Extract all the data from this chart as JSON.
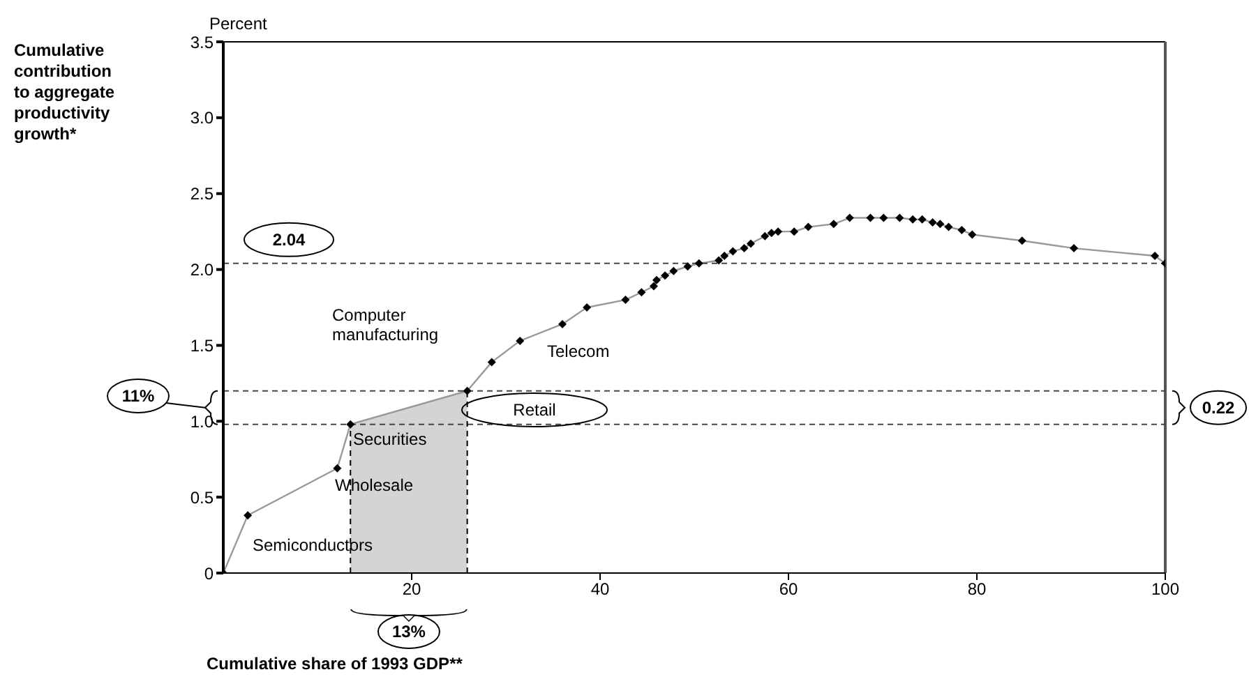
{
  "chart_data": {
    "type": "line",
    "xlabel": "Cumulative share of 1993 GDP**",
    "ylabel": "Cumulative contribution to aggregate productivity growth*",
    "xlim": [
      0,
      100
    ],
    "xticks": [
      20,
      40,
      60,
      80,
      100
    ],
    "ylim": [
      0,
      3.5
    ],
    "yticks": [
      0,
      {
        "value": 0.5,
        "label": "0.5"
      },
      {
        "value": 1,
        "label": "1.0"
      },
      {
        "value": 1.5,
        "label": "1.5"
      },
      {
        "value": 2,
        "label": "2.0"
      },
      {
        "value": 2.5,
        "label": "2.5"
      },
      {
        "value": 3,
        "label": "3.0"
      },
      {
        "value": 3.5,
        "label": "3.5"
      }
    ],
    "grid": false,
    "legend": false,
    "line_style": "solid",
    "series": [
      {
        "type": "area",
        "color": "#d4d4d4",
        "x": [
          13.5,
          25.9
        ],
        "values": [
          0.98,
          1.2
        ]
      },
      {
        "marker": "diamond",
        "color": "#000000",
        "x": [
          0,
          2.6,
          12.1,
          13.5,
          25.9,
          28.5,
          31.5,
          36,
          38.6,
          42.7,
          44.4,
          45.7,
          46.0,
          46.9,
          47.8,
          49.3,
          50.5,
          52.6,
          53.2,
          54.1,
          55.3,
          56.0,
          57.5,
          58.2,
          58.9,
          60.6,
          62.1,
          64.8,
          66.5,
          68.7,
          70.1,
          71.8,
          73.2,
          74.2,
          75.3,
          76.1,
          77,
          78.4,
          79.5,
          84.8,
          90.3,
          98.9,
          100
        ],
        "values": [
          0,
          0.38,
          0.69,
          0.98,
          1.2,
          1.39,
          1.53,
          1.64,
          1.75,
          1.8,
          1.85,
          1.89,
          1.93,
          1.96,
          1.99,
          2.02,
          2.04,
          2.06,
          2.09,
          2.12,
          2.14,
          2.17,
          2.22,
          2.24,
          2.25,
          2.25,
          2.28,
          2.3,
          2.34,
          2.34,
          2.34,
          2.34,
          2.33,
          2.33,
          2.31,
          2.3,
          2.28,
          2.26,
          2.23,
          2.19,
          2.14,
          2.09,
          2.04
        ]
      }
    ],
    "ref_lines": [
      {
        "axis": "y",
        "value": 2.04,
        "label": "2.04",
        "line_style": "dashed"
      },
      {
        "axis": "y",
        "value": 0.98,
        "line_style": "dashed"
      },
      {
        "axis": "y",
        "value": 1.2,
        "line_style": "dashed"
      },
      {
        "axis": "x",
        "value": 13.5,
        "line_style": "dashed"
      },
      {
        "axis": "x",
        "value": 25.9,
        "line_style": "dashed"
      }
    ],
    "annotations": [
      "Percent",
      "11%",
      "13%",
      "0.22",
      "Semiconductors",
      "Wholesale",
      "Securities",
      "Computer manufacturing",
      "Telecom",
      "Retail"
    ]
  }
}
